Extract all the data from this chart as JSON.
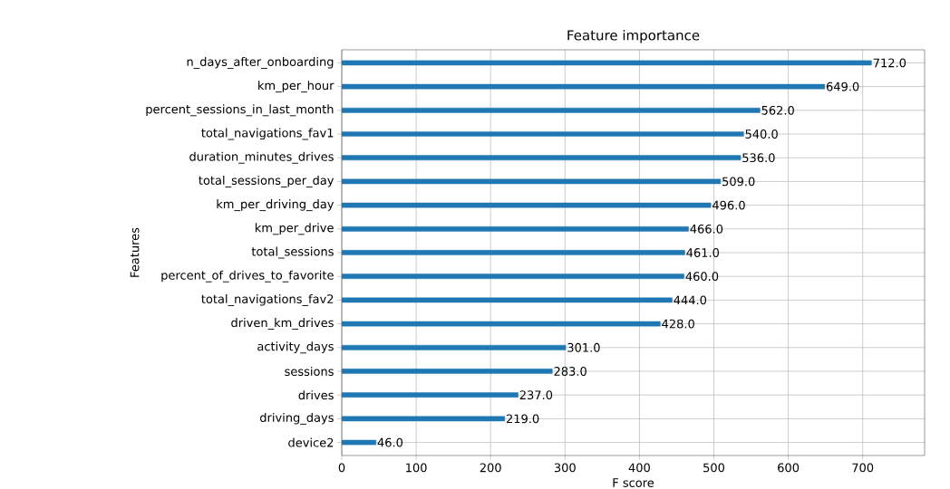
{
  "chart_data": {
    "type": "bar",
    "orientation": "horizontal",
    "title": "Feature importance",
    "xlabel": "F score",
    "ylabel": "Features",
    "categories": [
      "n_days_after_onboarding",
      "km_per_hour",
      "percent_sessions_in_last_month",
      "total_navigations_fav1",
      "duration_minutes_drives",
      "total_sessions_per_day",
      "km_per_driving_day",
      "km_per_drive",
      "total_sessions",
      "percent_of_drives_to_favorite",
      "total_navigations_fav2",
      "driven_km_drives",
      "activity_days",
      "sessions",
      "drives",
      "driving_days",
      "device2"
    ],
    "values": [
      712,
      649,
      562,
      540,
      536,
      509,
      496,
      466,
      461,
      460,
      444,
      428,
      301,
      283,
      237,
      219,
      46
    ],
    "value_labels": [
      "712.0",
      "649.0",
      "562.0",
      "540.0",
      "536.0",
      "509.0",
      "496.0",
      "466.0",
      "461.0",
      "460.0",
      "444.0",
      "428.0",
      "301.0",
      "283.0",
      "237.0",
      "219.0",
      "46.0"
    ],
    "color": "#1f77b4",
    "xlim": [
      0,
      783.2
    ],
    "xticks": [
      0,
      100,
      200,
      300,
      400,
      500,
      600,
      700
    ],
    "grid": true
  }
}
